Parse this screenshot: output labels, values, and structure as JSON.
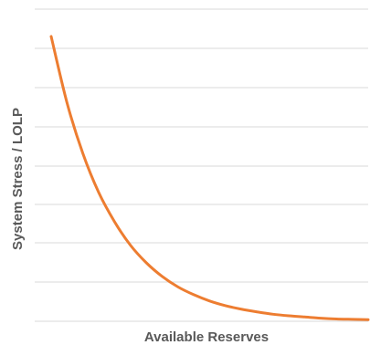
{
  "chart_data": {
    "type": "line",
    "title": "",
    "xlabel": "Available Reserves",
    "ylabel": "System Stress / LOLP",
    "grid": true,
    "legend": "none",
    "x_ticks_shown": false,
    "y_ticks_shown": false,
    "xlim": [
      0,
      10
    ],
    "ylim": [
      0,
      8
    ],
    "series": [
      {
        "x": [
          0,
          0.5,
          1,
          1.5,
          2,
          2.5,
          3,
          3.5,
          4,
          4.5,
          5,
          5.5,
          6,
          6.5,
          7,
          7.5,
          8,
          8.5,
          9,
          9.5,
          10
        ],
        "y": [
          7.3,
          5.6,
          4.3,
          3.3,
          2.55,
          1.95,
          1.5,
          1.15,
          0.88,
          0.68,
          0.52,
          0.4,
          0.31,
          0.24,
          0.18,
          0.14,
          0.11,
          0.08,
          0.06,
          0.05,
          0.04
        ]
      }
    ],
    "colors": {
      "line": "#ED7D31",
      "grid": "#D9D9D9",
      "text": "#595959"
    }
  }
}
